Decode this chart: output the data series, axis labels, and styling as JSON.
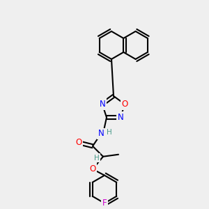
{
  "bg_color": "#efefef",
  "bond_color": "#000000",
  "bond_lw": 1.5,
  "atom_colors": {
    "N": "#0000ff",
    "O": "#ff0000",
    "F": "#cc00cc",
    "H": "#4a9a8a",
    "C": "#000000"
  }
}
